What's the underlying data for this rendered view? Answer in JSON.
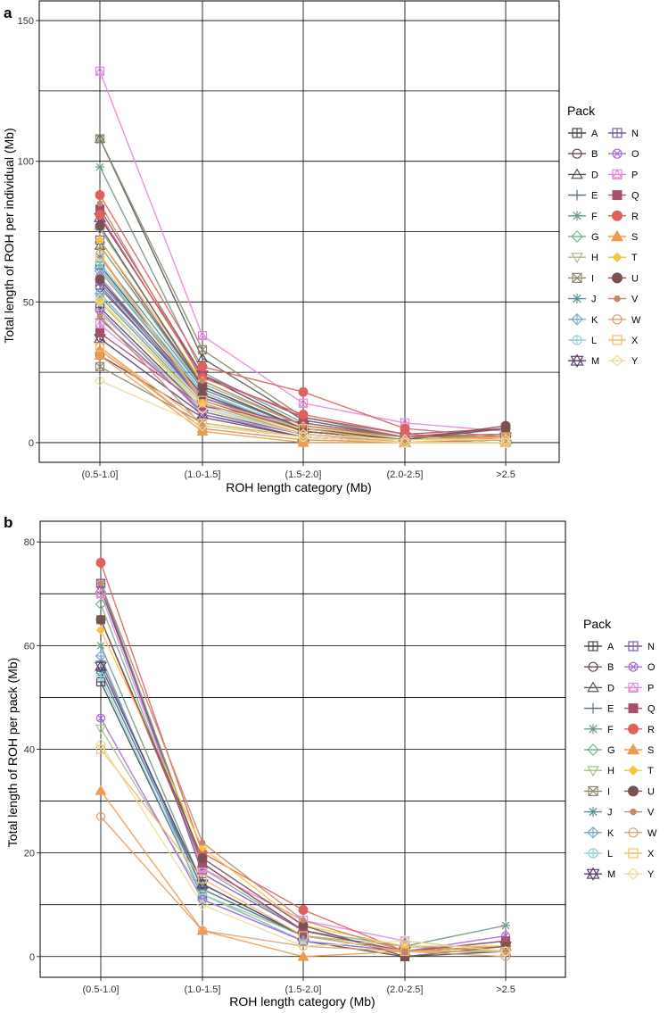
{
  "chart_data": [
    {
      "panel": "a",
      "type": "line",
      "title": "",
      "xlabel": "ROH length category (Mb)",
      "ylabel": "Total length of ROH per individual (Mb)",
      "categories": [
        "(0.5-1.0]",
        "(1.0-1.5]",
        "(1.5-2.0]",
        "(2.0-2.5]",
        ">2.5"
      ],
      "ylim": [
        -7,
        157
      ],
      "yticks": [
        0,
        50,
        100,
        150
      ],
      "grid_minor": [
        25,
        75,
        125
      ],
      "legend": {
        "title": "Pack",
        "position": "right"
      },
      "series": [
        {
          "name": "A",
          "values": [
            63,
            18,
            4,
            1,
            2
          ]
        },
        {
          "name": "A",
          "values": [
            48,
            12,
            3,
            1,
            1
          ]
        },
        {
          "name": "B",
          "values": [
            31,
            9,
            2,
            0,
            1
          ]
        },
        {
          "name": "B",
          "values": [
            55,
            16,
            5,
            1,
            2
          ]
        },
        {
          "name": "D",
          "values": [
            108,
            30,
            8,
            2,
            3
          ]
        },
        {
          "name": "D",
          "values": [
            70,
            20,
            5,
            1,
            2
          ]
        },
        {
          "name": "E",
          "values": [
            58,
            15,
            4,
            1,
            1
          ]
        },
        {
          "name": "E",
          "values": [
            44,
            11,
            3,
            0,
            1
          ]
        },
        {
          "name": "F",
          "values": [
            98,
            25,
            7,
            2,
            3
          ]
        },
        {
          "name": "F",
          "values": [
            52,
            14,
            3,
            1,
            1
          ]
        },
        {
          "name": "G",
          "values": [
            76,
            21,
            6,
            2,
            2
          ]
        },
        {
          "name": "G",
          "values": [
            61,
            17,
            4,
            1,
            1
          ]
        },
        {
          "name": "H",
          "values": [
            46,
            12,
            3,
            1,
            1
          ]
        },
        {
          "name": "H",
          "values": [
            70,
            19,
            5,
            2,
            2
          ]
        },
        {
          "name": "I",
          "values": [
            108,
            33,
            9,
            2,
            3
          ]
        },
        {
          "name": "I",
          "values": [
            27,
            7,
            2,
            0,
            1
          ]
        },
        {
          "name": "J",
          "values": [
            57,
            16,
            4,
            1,
            1
          ]
        },
        {
          "name": "J",
          "values": [
            66,
            19,
            5,
            1,
            2
          ]
        },
        {
          "name": "K",
          "values": [
            53,
            15,
            4,
            1,
            2
          ]
        },
        {
          "name": "K",
          "values": [
            62,
            17,
            5,
            1,
            1
          ]
        },
        {
          "name": "L",
          "values": [
            50,
            13,
            3,
            1,
            1
          ]
        },
        {
          "name": "L",
          "values": [
            64,
            18,
            4,
            1,
            2
          ]
        },
        {
          "name": "M",
          "values": [
            80,
            24,
            6,
            2,
            2
          ]
        },
        {
          "name": "M",
          "values": [
            37,
            10,
            2,
            0,
            1
          ]
        },
        {
          "name": "N",
          "values": [
            72,
            20,
            5,
            1,
            2
          ]
        },
        {
          "name": "N",
          "values": [
            56,
            15,
            4,
            1,
            1
          ]
        },
        {
          "name": "O",
          "values": [
            47,
            10,
            3,
            1,
            1
          ]
        },
        {
          "name": "O",
          "values": [
            59,
            16,
            4,
            1,
            2
          ]
        },
        {
          "name": "P",
          "values": [
            132,
            38,
            14,
            7,
            4
          ]
        },
        {
          "name": "P",
          "values": [
            42,
            12,
            3,
            1,
            1
          ]
        },
        {
          "name": "Q",
          "values": [
            83,
            24,
            9,
            3,
            5
          ]
        },
        {
          "name": "Q",
          "values": [
            39,
            13,
            7,
            2,
            5
          ]
        },
        {
          "name": "R",
          "values": [
            88,
            27,
            18,
            5,
            2
          ]
        },
        {
          "name": "R",
          "values": [
            81,
            23,
            10,
            3,
            1
          ]
        },
        {
          "name": "S",
          "values": [
            33,
            5,
            1,
            0,
            1
          ]
        },
        {
          "name": "S",
          "values": [
            31,
            4,
            0,
            0,
            0
          ]
        },
        {
          "name": "T",
          "values": [
            72,
            22,
            6,
            1,
            2
          ]
        },
        {
          "name": "T",
          "values": [
            50,
            14,
            4,
            1,
            1
          ]
        },
        {
          "name": "U",
          "values": [
            77,
            20,
            5,
            1,
            6
          ]
        },
        {
          "name": "U",
          "values": [
            58,
            17,
            4,
            1,
            5
          ]
        },
        {
          "name": "V",
          "values": [
            85,
            22,
            6,
            2,
            2
          ]
        },
        {
          "name": "V",
          "values": [
            45,
            6,
            2,
            0,
            1
          ]
        },
        {
          "name": "W",
          "values": [
            34,
            5,
            1,
            0,
            0
          ]
        },
        {
          "name": "W",
          "values": [
            67,
            14,
            3,
            0,
            0
          ]
        },
        {
          "name": "X",
          "values": [
            66,
            15,
            5,
            0,
            2
          ]
        },
        {
          "name": "X",
          "values": [
            34,
            7,
            2,
            0,
            0
          ]
        },
        {
          "name": "Y",
          "values": [
            22,
            6,
            2,
            0,
            0
          ]
        },
        {
          "name": "Y",
          "values": [
            51,
            12,
            3,
            1,
            1
          ]
        }
      ]
    },
    {
      "panel": "b",
      "type": "line",
      "title": "",
      "xlabel": "ROH length category (Mb)",
      "ylabel": "Total length of ROH per pack (Mb)",
      "categories": [
        "(0.5-1.0]",
        "(1.0-1.5]",
        "(1.5-2.0]",
        "(2.0-2.5]",
        ">2.5"
      ],
      "ylim": [
        -4,
        84
      ],
      "yticks": [
        0,
        20,
        40,
        60,
        80
      ],
      "grid_minor": [
        10,
        30,
        50,
        70
      ],
      "legend": {
        "title": "Pack",
        "position": "right"
      },
      "series": [
        {
          "name": "A",
          "values": [
            53,
            12,
            3,
            0,
            1
          ]
        },
        {
          "name": "B",
          "values": [
            55,
            13,
            4,
            1,
            1
          ]
        },
        {
          "name": "D",
          "values": [
            71,
            18,
            5,
            1,
            1
          ]
        },
        {
          "name": "E",
          "values": [
            57,
            13,
            4,
            1,
            2
          ]
        },
        {
          "name": "F",
          "values": [
            60,
            14,
            4,
            2,
            6
          ]
        },
        {
          "name": "G",
          "values": [
            68,
            17,
            5,
            2,
            2
          ]
        },
        {
          "name": "H",
          "values": [
            44,
            12,
            4,
            2,
            1
          ]
        },
        {
          "name": "I",
          "values": [
            72,
            18,
            5,
            1,
            2
          ]
        },
        {
          "name": "J",
          "values": [
            55,
            13,
            4,
            1,
            2
          ]
        },
        {
          "name": "K",
          "values": [
            58,
            11,
            3,
            1,
            1
          ]
        },
        {
          "name": "L",
          "values": [
            54,
            12,
            3,
            1,
            1
          ]
        },
        {
          "name": "M",
          "values": [
            56,
            14,
            4,
            1,
            2
          ]
        },
        {
          "name": "N",
          "values": [
            72,
            16,
            5,
            1,
            3
          ]
        },
        {
          "name": "O",
          "values": [
            46,
            11,
            3,
            1,
            4
          ]
        },
        {
          "name": "P",
          "values": [
            70,
            17,
            7,
            3,
            1
          ]
        },
        {
          "name": "Q",
          "values": [
            65,
            18,
            5,
            1,
            3
          ]
        },
        {
          "name": "R",
          "values": [
            76,
            20,
            9,
            1,
            2
          ]
        },
        {
          "name": "S",
          "values": [
            32,
            5,
            0,
            1,
            2
          ]
        },
        {
          "name": "T",
          "values": [
            63,
            21,
            6,
            2,
            2
          ]
        },
        {
          "name": "U",
          "values": [
            65,
            19,
            6,
            0,
            2
          ]
        },
        {
          "name": "V",
          "values": [
            72,
            22,
            7,
            1,
            1
          ]
        },
        {
          "name": "W",
          "values": [
            27,
            5,
            2,
            1,
            0
          ]
        },
        {
          "name": "X",
          "values": [
            40,
            15,
            4,
            1,
            1
          ]
        },
        {
          "name": "Y",
          "values": [
            41,
            10,
            2,
            3,
            1
          ]
        }
      ]
    }
  ],
  "legend_items": [
    {
      "label": "A",
      "color": "#4a4a4a",
      "shape": "square-plus"
    },
    {
      "label": "B",
      "color": "#6b4a5e",
      "shape": "circle"
    },
    {
      "label": "D",
      "color": "#565656",
      "shape": "triangle-up"
    },
    {
      "label": "E",
      "color": "#5b6f7d",
      "shape": "plus"
    },
    {
      "label": "F",
      "color": "#6f9a82",
      "shape": "asterisk"
    },
    {
      "label": "G",
      "color": "#79b58f",
      "shape": "diamond"
    },
    {
      "label": "H",
      "color": "#a8c08a",
      "shape": "triangle-down"
    },
    {
      "label": "I",
      "color": "#8f8a6e",
      "shape": "square-x"
    },
    {
      "label": "J",
      "color": "#5b8fa0",
      "shape": "asterisk"
    },
    {
      "label": "K",
      "color": "#7fa9d0",
      "shape": "diamond-plus"
    },
    {
      "label": "L",
      "color": "#8fd3de",
      "shape": "circle-plus"
    },
    {
      "label": "M",
      "color": "#5a3f6b",
      "shape": "star-of-david"
    },
    {
      "label": "N",
      "color": "#7c5ca8",
      "shape": "square-plus"
    },
    {
      "label": "O",
      "color": "#a770d6",
      "shape": "circle-x"
    },
    {
      "label": "P",
      "color": "#e58ad8",
      "shape": "square-triangle"
    },
    {
      "label": "Q",
      "color": "#a4506d",
      "shape": "filled-square"
    },
    {
      "label": "R",
      "color": "#e06060",
      "shape": "filled-circle"
    },
    {
      "label": "S",
      "color": "#f09a50",
      "shape": "filled-triangle"
    },
    {
      "label": "T",
      "color": "#f5c542",
      "shape": "filled-diamond"
    },
    {
      "label": "U",
      "color": "#7a5252",
      "shape": "filled-circle"
    },
    {
      "label": "V",
      "color": "#c68668",
      "shape": "small-circle"
    },
    {
      "label": "W",
      "color": "#e0a070",
      "shape": "circle"
    },
    {
      "label": "X",
      "color": "#f2bd6a",
      "shape": "square"
    },
    {
      "label": "Y",
      "color": "#e8e09a",
      "shape": "diamond"
    }
  ]
}
